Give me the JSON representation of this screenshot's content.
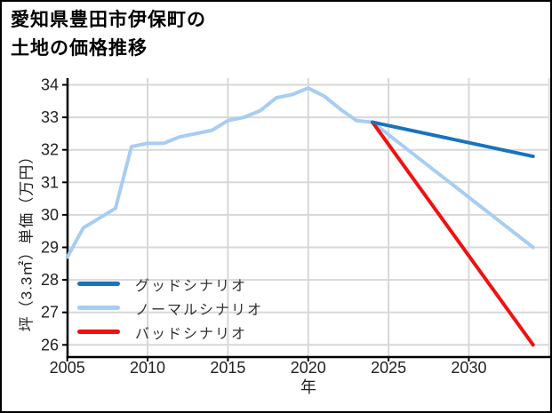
{
  "title": {
    "line1": "愛知県豊田市伊保町の",
    "line2": "土地の価格推移"
  },
  "colors": {
    "grid": "#d8d8d8",
    "axis": "#000000",
    "tick_text": "#222222",
    "good_blue": "#1873be",
    "normal_lightblue": "#a7cdf2",
    "bad_red": "#ef1212"
  },
  "chart_data": {
    "type": "line",
    "title": "愛知県豊田市伊保町の土地の価格推移",
    "xlabel": "年",
    "ylabel": "坪（3.3㎡）単価（万円）",
    "xlim": [
      2005,
      2035.3
    ],
    "ylim": [
      25.6,
      34.2
    ],
    "xticks": [
      2005,
      2010,
      2015,
      2020,
      2025,
      2030
    ],
    "xgrid_extra": [
      2035
    ],
    "yticks": [
      26,
      27,
      28,
      29,
      30,
      31,
      32,
      33,
      34
    ],
    "grid": true,
    "legend_position": "lower-left",
    "series": [
      {
        "id": "history",
        "name": "",
        "color": "#a7cdf2",
        "x": [
          2005,
          2006,
          2007,
          2008,
          2009,
          2010,
          2011,
          2012,
          2013,
          2014,
          2015,
          2016,
          2017,
          2018,
          2019,
          2020,
          2021,
          2022,
          2023,
          2024
        ],
        "values": [
          28.7,
          29.6,
          29.9,
          30.2,
          32.1,
          32.2,
          32.2,
          32.4,
          32.5,
          32.6,
          32.9,
          33.0,
          33.2,
          33.6,
          33.7,
          33.9,
          33.65,
          33.25,
          32.9,
          32.85
        ]
      },
      {
        "id": "normal",
        "name": "ノーマルシナリオ",
        "color": "#a7cdf2",
        "x": [
          2024,
          2034
        ],
        "values": [
          32.85,
          29.0
        ]
      },
      {
        "id": "bad",
        "name": "バッドシナリオ",
        "color": "#ef1212",
        "x": [
          2024,
          2034
        ],
        "values": [
          32.85,
          26.0
        ]
      },
      {
        "id": "good",
        "name": "グッドシナリオ",
        "color": "#1873be",
        "x": [
          2024,
          2034
        ],
        "values": [
          32.85,
          31.8
        ]
      }
    ],
    "legend": [
      {
        "id": "good",
        "label": "グッドシナリオ",
        "color": "#1873be"
      },
      {
        "id": "normal",
        "label": "ノーマルシナリオ",
        "color": "#a7cdf2"
      },
      {
        "id": "bad",
        "label": "バッドシナリオ",
        "color": "#ef1212"
      }
    ]
  }
}
